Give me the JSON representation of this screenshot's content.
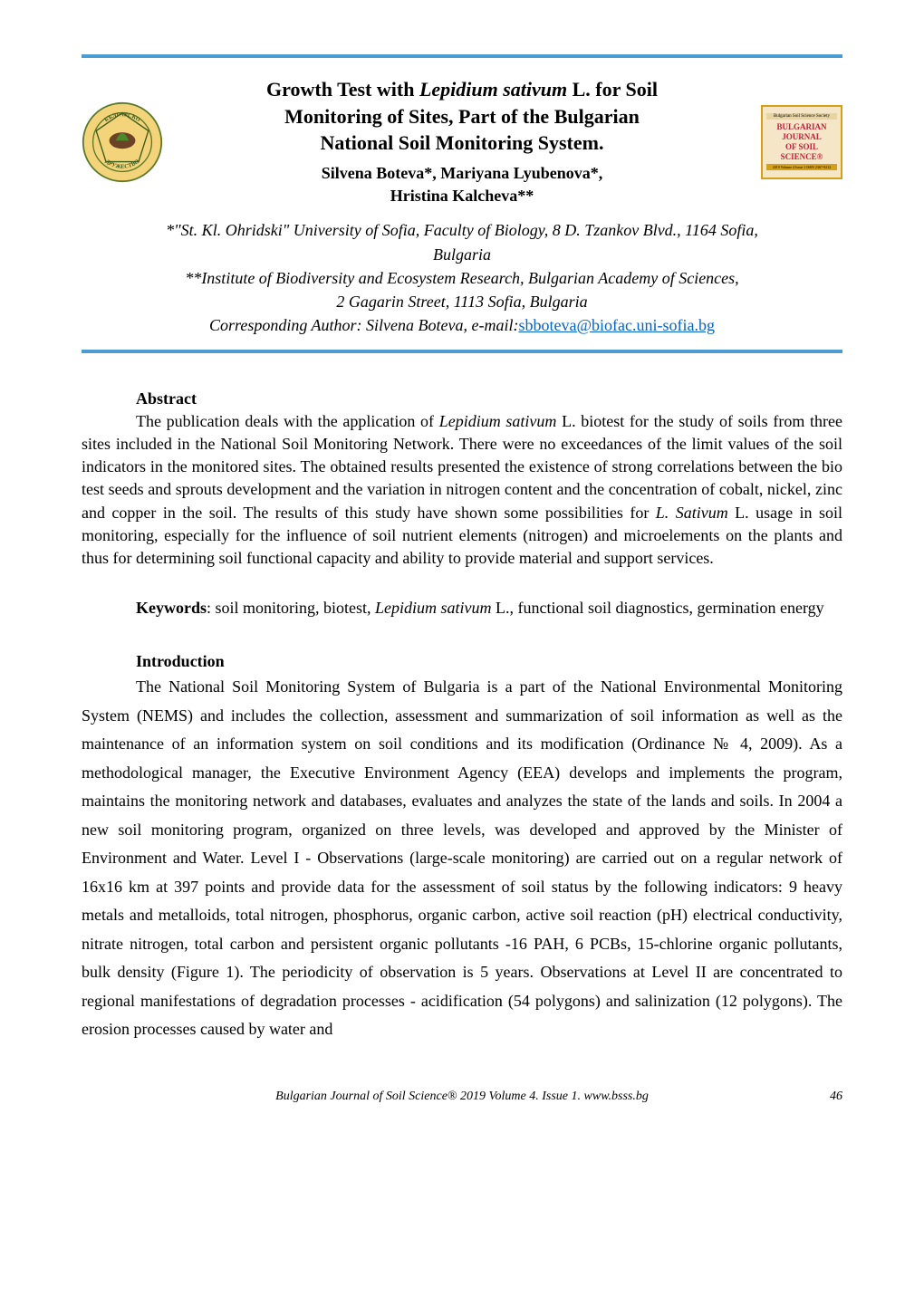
{
  "colors": {
    "divider": "#4b9cd3",
    "link": "#0563c1",
    "logo_bg": "#f5e6c8",
    "logo_border": "#d4a017",
    "logo_text": "#c41e3a",
    "text": "#000000",
    "background": "#ffffff"
  },
  "typography": {
    "body_family": "Times New Roman",
    "title_size_pt": 22,
    "authors_size_pt": 18,
    "body_size_pt": 18,
    "footer_size_pt": 14
  },
  "header": {
    "title_line1": "Growth Test with ",
    "title_italic1": "Lepidium sativum",
    "title_after_italic1": " L. for Soil",
    "title_line2": "Monitoring of Sites, Part of the Bulgarian",
    "title_line3": "National Soil Monitoring System.",
    "authors_line1": "Silvena Boteva*, Mariyana Lyubenova*,",
    "authors_line2": "Hristina Kalcheva**"
  },
  "logo_left": {
    "name": "society-emblem",
    "outer_text_top": "БЪЛГАРСКО",
    "outer_text_bottom": "ДРУЖЕСТВО",
    "inner_text": "ПОЧВОЗНАНИЕ"
  },
  "logo_right": {
    "small_banner": "Bulgarian Soil Science Society",
    "line1": "BULGARIAN",
    "line2": "JOURNAL",
    "line3": "OF SOIL",
    "line4": "SCIENCE®",
    "bottom_strip": "2019    Volume 4    Issue 1    ISSN 2367-9212"
  },
  "affiliations": {
    "line1_prefix": "*",
    "line1_italic": "\"St. Kl. Ohridski\" University of Sofia, Faculty of Biology, 8 D. Tzankov Blvd., 1164 Sofia,",
    "line2_italic": "Bulgaria",
    "line3_prefix": "**",
    "line3_italic": "Institute of Biodiversity and Ecosystem Research, Bulgarian Academy of Sciences,",
    "line4_italic": "2 Gagarin Street, 1113 Sofia, Bulgaria",
    "corresponding_italic": "Corresponding Author: Silvena Boteva, e-mail:",
    "email": "sbboteva@biofac.uni-sofia.bg"
  },
  "abstract": {
    "heading": "Abstract",
    "text_parts": [
      {
        "t": "The publication deals with the application of ",
        "i": false
      },
      {
        "t": "Lepidium sativum",
        "i": true
      },
      {
        "t": " L. biotest for the study of soils from three sites included in the National Soil Monitoring Network. There were no exceedances of the limit values of the soil indicators in the monitored sites. The obtained results presented the existence of strong correlations between the bio test seeds and sprouts development and the variation in nitrogen content and the concentration of cobalt, nickel, zinc and copper in the soil. The results of this study have shown some possibilities for ",
        "i": false
      },
      {
        "t": "L. Sativum",
        "i": true
      },
      {
        "t": " L. usage in soil monitoring, especially for the influence of soil nutrient elements (nitrogen) and microelements on the plants and thus for determining soil functional capacity and ability to provide material and support services.",
        "i": false
      }
    ]
  },
  "keywords": {
    "label": "Keywords",
    "text_parts": [
      {
        "t": ": soil monitoring, biotest, ",
        "i": false
      },
      {
        "t": "Lepidium sativum",
        "i": true
      },
      {
        "t": " L., functional soil diagnostics, germination energy",
        "i": false
      }
    ]
  },
  "introduction": {
    "heading": "Introduction",
    "text": "The National Soil Monitoring System of Bulgaria is a part of the National Environmental Monitoring System (NEMS) and includes the collection, assessment and summarization of soil information as well as the maintenance of an information system on soil conditions and its modification (Ordinance № 4, 2009). As a methodological manager, the Executive Environment Agency (EEA) develops and implements the program, maintains the monitoring network and databases, evaluates and analyzes the state of the lands and soils. In 2004 a new soil monitoring program, organized on three levels, was developed and approved by the Minister of Environment and Water. Level I - Observations (large-scale monitoring) are carried out on a regular network of 16x16 km at 397 points and provide data for the assessment of soil status by the following indicators: 9 heavy metals and metalloids, total nitrogen, phosphorus, organic carbon, active soil reaction (pH) electrical conductivity, nitrate nitrogen, total carbon and persistent organic pollutants -16 PAH, 6 PCBs, 15-chlorine organic pollutants, bulk density (Figure 1). The periodicity of observation is 5 years. Observations at Level II are concentrated to regional manifestations of degradation processes - acidification (54 polygons) and salinization (12 polygons). The erosion processes caused by water and"
  },
  "footer": {
    "journal": "Bulgarian Journal of Soil Science® 2019 Volume 4. Issue 1. www.bsss.bg",
    "page": "46"
  }
}
